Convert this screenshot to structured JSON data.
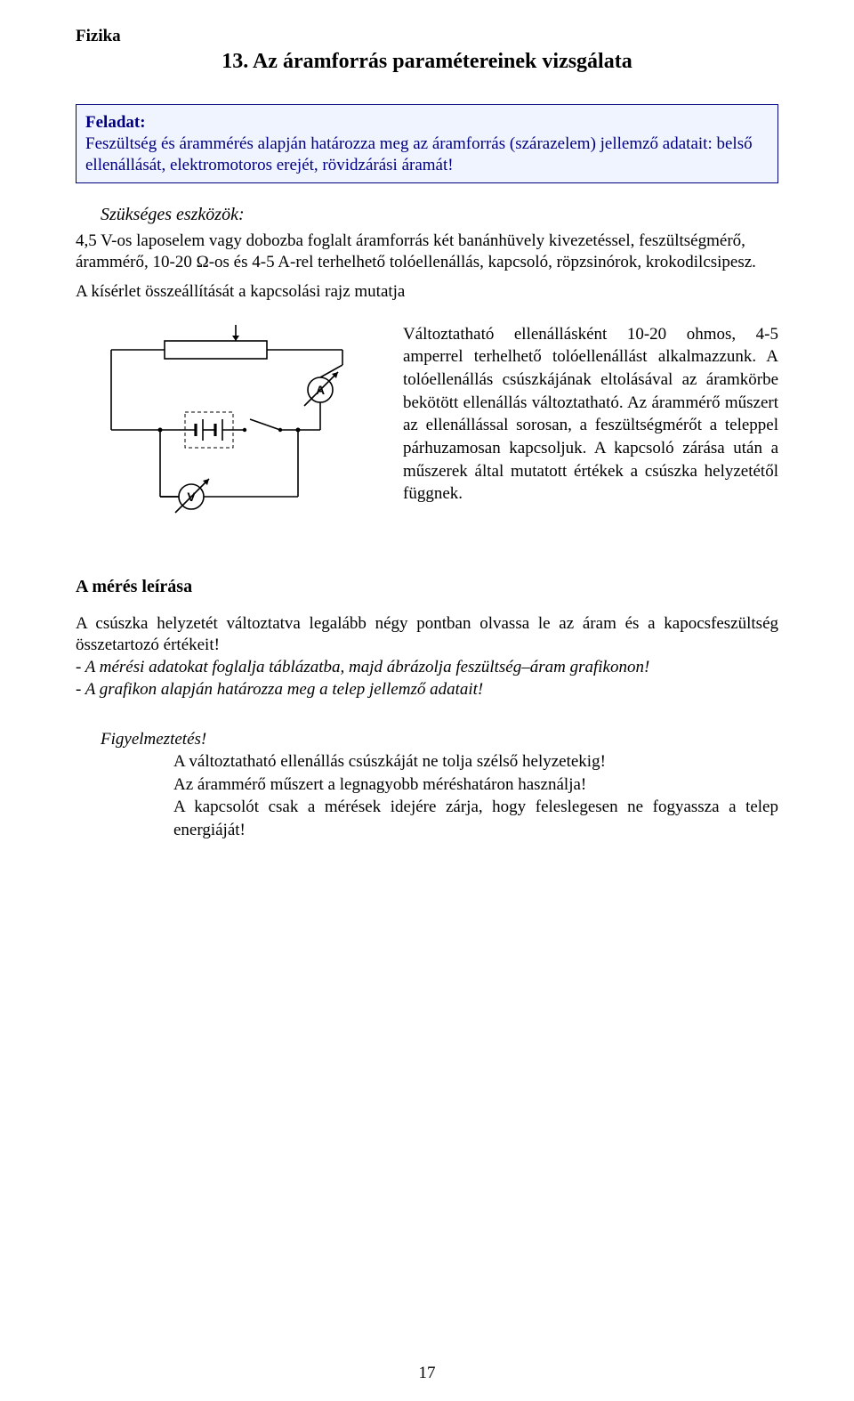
{
  "header": "Fizika",
  "title": "13. Az áramforrás paramétereinek vizsgálata",
  "task": {
    "head": "Feladat:",
    "body": "Feszültség és árammérés alapján határozza meg az áramforrás (szárazelem) jellemző adatait: belső ellenállását, elektromotoros erejét, rövidzárási áramát!"
  },
  "tools": {
    "head": "Szükséges eszközök:",
    "body": "4,5 V-os laposelem vagy dobozba foglalt áramforrás két banánhüvely kivezetéssel, feszültségmérő, árammérő, 10-20 Ω-os és 4-5 A-rel terhelhető tolóellenállás, kapcsoló, röpzsinórok, krokodilcsipesz."
  },
  "assembly": "A kísérlet összeállítását a kapcsolási rajz mutatja",
  "diagram": {
    "ammeter_label": "A",
    "voltmeter_label": "V",
    "stroke": "#000000",
    "stroke_width": 1.6,
    "font_family": "Arial, sans-serif",
    "font_weight": "bold",
    "label_fontsize": 14
  },
  "explain": "Változtatható ellenállásként 10-20 ohmos, 4-5 amperrel terhelhető tolóellenállást alkalmazzunk. A tolóellenállás csúszkájának eltolásával az áramkörbe bekötött ellenállás változtatható. Az árammérő műszert az ellenállással sorosan, a feszültségmérőt a teleppel párhuzamosan kapcsoljuk. A kapcsoló zárása után a műszerek által mutatott értékek a csúszka helyzetétől függnek.",
  "measure": {
    "head": "A mérés leírása",
    "p1": "A csúszka helyzetét változtatva legalább négy pontban olvassa le az áram és a kapocsfeszültség összetartozó értékeit!",
    "p2": "- A mérési adatokat foglalja táblázatba, majd ábrázolja feszültség–áram grafikonon!",
    "p3": "- A grafikon alapján határozza meg a telep jellemző adatait!"
  },
  "warn": {
    "head": "Figyelmeztetés!",
    "l1": "A változtatható ellenállás csúszkáját ne tolja szélső helyzetekig!",
    "l2": "Az árammérő műszert a legnagyobb méréshatáron használja!",
    "l3": "A kapcsolót csak a mérések idejére zárja, hogy feleslegesen ne fogyassza a telep energiáját!"
  },
  "page_number": "17"
}
